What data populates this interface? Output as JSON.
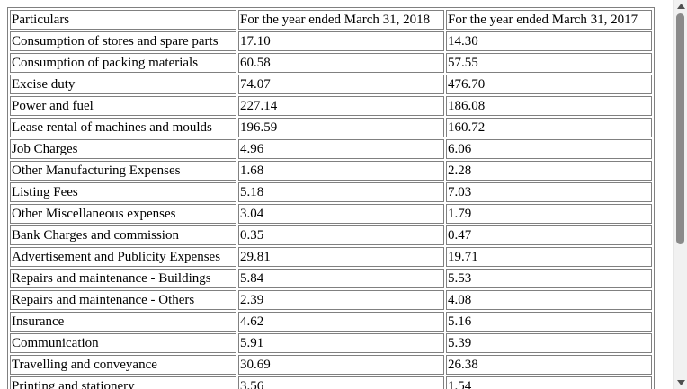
{
  "table": {
    "header": {
      "particulars": "Particulars",
      "fy2018": "For the year ended March 31, 2018",
      "fy2017": "For the year ended March 31, 2017"
    },
    "rows": [
      {
        "label": "Consumption of stores and spare parts",
        "fy2018": "17.10",
        "fy2017": "14.30"
      },
      {
        "label": "Consumption of packing materials",
        "fy2018": "60.58",
        "fy2017": "57.55"
      },
      {
        "label": "Excise duty",
        "fy2018": "74.07",
        "fy2017": "476.70"
      },
      {
        "label": "Power and fuel",
        "fy2018": "227.14",
        "fy2017": "186.08"
      },
      {
        "label": "Lease rental of machines and moulds",
        "fy2018": "196.59",
        "fy2017": "160.72"
      },
      {
        "label": "Job Charges",
        "fy2018": "4.96",
        "fy2017": "6.06"
      },
      {
        "label": "Other Manufacturing Expenses",
        "fy2018": "1.68",
        "fy2017": "2.28"
      },
      {
        "label": "Listing Fees",
        "fy2018": "5.18",
        "fy2017": "7.03"
      },
      {
        "label": "Other Miscellaneous expenses",
        "fy2018": "3.04",
        "fy2017": "1.79"
      },
      {
        "label": "Bank Charges and commission",
        "fy2018": "0.35",
        "fy2017": "0.47"
      },
      {
        "label": "Advertisement and Publicity Expenses",
        "fy2018": "29.81",
        "fy2017": "19.71"
      },
      {
        "label": "Repairs and maintenance - Buildings",
        "fy2018": "5.84",
        "fy2017": "5.53"
      },
      {
        "label": "Repairs and maintenance - Others",
        "fy2018": "2.39",
        "fy2017": "4.08"
      },
      {
        "label": "Insurance",
        "fy2018": "4.62",
        "fy2017": "5.16"
      },
      {
        "label": "Communication",
        "fy2018": "5.91",
        "fy2017": "5.39"
      },
      {
        "label": "Travelling and conveyance",
        "fy2018": "30.69",
        "fy2017": "26.38"
      },
      {
        "label": "Printing and stationery",
        "fy2018": "3.56",
        "fy2017": "1.54"
      }
    ]
  },
  "scrollbar": {
    "up_icon": "triangle-up",
    "down_icon": "triangle-down",
    "color_thumb": "#8a8a8a",
    "color_track": "#f1f1f1"
  }
}
